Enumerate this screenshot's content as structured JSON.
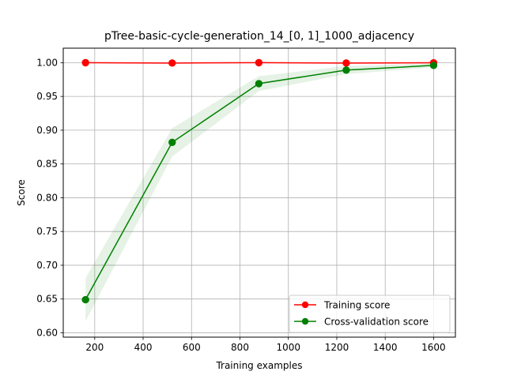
{
  "chart_data": {
    "type": "line",
    "title": "pTree-basic-cycle-generation_14_[0, 1]_1000_adjacency",
    "xlabel": "Training examples",
    "ylabel": "Score",
    "xlim": [
      70,
      1690
    ],
    "ylim": [
      0.5935,
      1.0215
    ],
    "x_ticks": [
      200,
      400,
      600,
      800,
      1000,
      1200,
      1400,
      1600
    ],
    "y_ticks": [
      0.6,
      0.65,
      0.7,
      0.75,
      0.8,
      0.85,
      0.9,
      0.95,
      1.0
    ],
    "grid": true,
    "legend_position": "lower-right",
    "x": [
      162,
      520,
      878,
      1239,
      1600
    ],
    "series": [
      {
        "name": "Training score",
        "color": "#ff0000",
        "values": [
          1.0,
          0.9995,
          1.0,
          0.9995,
          0.9998
        ],
        "band": {
          "low": [
            1.0,
            0.9992,
            0.9998,
            0.9992,
            0.9996
          ],
          "high": [
            1.0,
            0.9998,
            1.0,
            0.9998,
            1.0
          ]
        }
      },
      {
        "name": "Cross-validation score",
        "color": "#008000",
        "values": [
          0.649,
          0.882,
          0.969,
          0.989,
          0.996
        ],
        "band": {
          "low": [
            0.617,
            0.861,
            0.958,
            0.983,
            0.993
          ],
          "high": [
            0.681,
            0.903,
            0.98,
            0.995,
            0.999
          ]
        }
      }
    ]
  }
}
